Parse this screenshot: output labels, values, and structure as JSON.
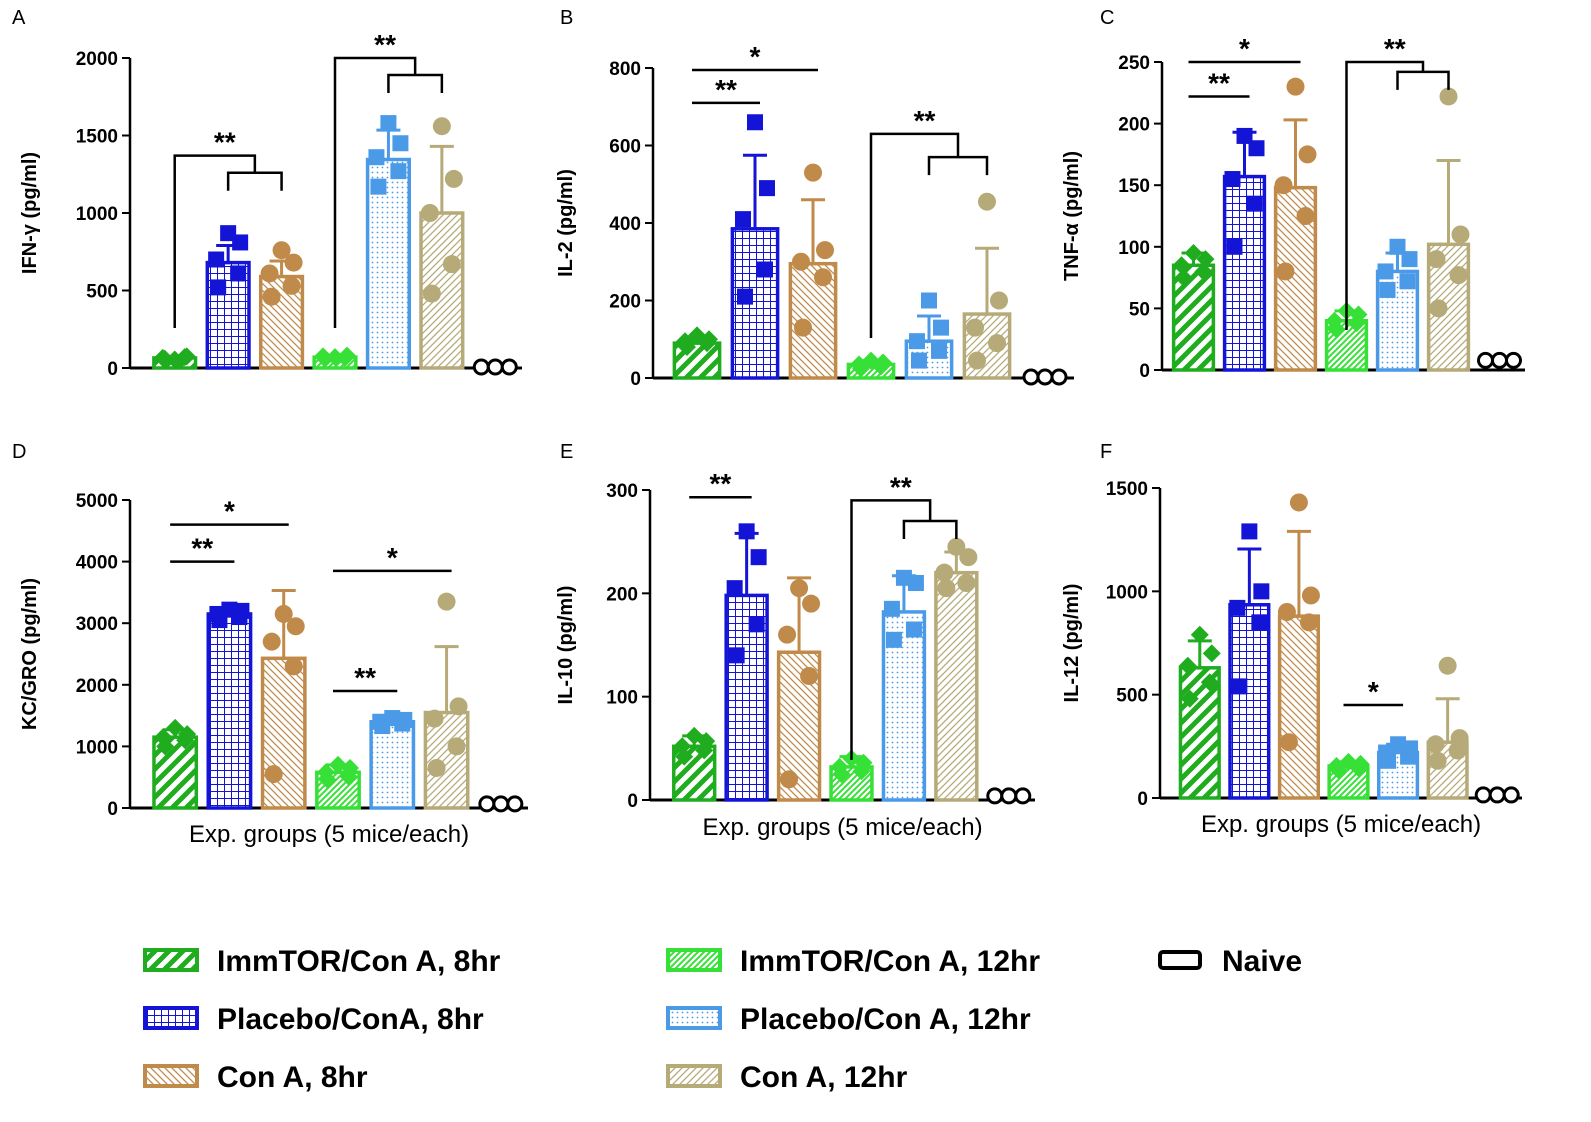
{
  "figure": {
    "legend": [
      {
        "label": "ImmTOR/Con A, 8hr",
        "series": 0
      },
      {
        "label": "Placebo/ConA, 8hr",
        "series": 1
      },
      {
        "label": "Con A, 8hr",
        "series": 2
      },
      {
        "label": "ImmTOR/Con A, 12hr",
        "series": 3
      },
      {
        "label": "Placebo/Con A, 12hr",
        "series": 4
      },
      {
        "label": "Con A, 12hr",
        "series": 5
      },
      {
        "label": "Naive",
        "series": 6
      }
    ],
    "series_styles": [
      {
        "name": "ImmTOR/Con A, 8hr",
        "color": "#1fad1f",
        "pattern": "diag-wide"
      },
      {
        "name": "Placebo/ConA, 8hr",
        "color": "#1414d6",
        "pattern": "grid"
      },
      {
        "name": "Con A, 8hr",
        "color": "#c08a4a",
        "pattern": "diag-back"
      },
      {
        "name": "ImmTOR/Con A, 12hr",
        "color": "#36e036",
        "pattern": "diag-fine"
      },
      {
        "name": "Placebo/Con A, 12hr",
        "color": "#4a9ae8",
        "pattern": "dots"
      },
      {
        "name": "Con A, 12hr",
        "color": "#b5aa78",
        "pattern": "diag-fwd"
      },
      {
        "name": "Naive",
        "color": "#000000",
        "pattern": "none"
      }
    ]
  },
  "chart_data": [
    {
      "panel": "A",
      "type": "bar",
      "ylabel": "IFN-γ (pg/ml)",
      "xlabel": "",
      "ylim": [
        0,
        2000
      ],
      "yticks": [
        "0",
        "500",
        "1000",
        "1500",
        "2000"
      ],
      "categories": [
        "ImmTOR/Con A, 8hr",
        "Placebo/ConA, 8hr",
        "Con A, 8hr",
        "ImmTOR/Con A, 12hr",
        "Placebo/Con A, 12hr",
        "Con A, 12hr",
        "Naive"
      ],
      "values": [
        65,
        680,
        590,
        70,
        1345,
        1000,
        0
      ],
      "errors": [
        10,
        110,
        100,
        10,
        190,
        430,
        0
      ],
      "points": [
        [
          60,
          70,
          65,
          75,
          55
        ],
        [
          520,
          610,
          700,
          810,
          870
        ],
        [
          460,
          530,
          610,
          680,
          760
        ],
        [
          60,
          65,
          75,
          80,
          70
        ],
        [
          1170,
          1270,
          1360,
          1450,
          1580
        ],
        [
          480,
          670,
          1000,
          1220,
          1560
        ],
        [
          0,
          0,
          0
        ]
      ],
      "significance": [
        {
          "label": "**",
          "type": "multi",
          "from": 0,
          "to": [
            1,
            2
          ],
          "y": 1370,
          "yb": 1260
        },
        {
          "label": "**",
          "type": "multi",
          "from": 3,
          "to": [
            4,
            5
          ],
          "y": 2000,
          "yb": 1890
        }
      ]
    },
    {
      "panel": "B",
      "type": "bar",
      "ylabel": "IL-2 (pg/ml)",
      "xlabel": "",
      "ylim": [
        0,
        800
      ],
      "yticks": [
        "0",
        "200",
        "400",
        "600",
        "800"
      ],
      "categories": [
        "ImmTOR/Con A, 8hr",
        "Placebo/ConA, 8hr",
        "Con A, 8hr",
        "ImmTOR/Con A, 12hr",
        "Placebo/Con A, 12hr",
        "Con A, 12hr",
        "Naive"
      ],
      "values": [
        90,
        385,
        295,
        35,
        95,
        165,
        0
      ],
      "errors": [
        10,
        190,
        165,
        10,
        65,
        170,
        0
      ],
      "points": [
        [
          80,
          90,
          95,
          100,
          110
        ],
        [
          210,
          280,
          410,
          490,
          660
        ],
        [
          130,
          260,
          300,
          330,
          530
        ],
        [
          25,
          30,
          35,
          40,
          45
        ],
        [
          45,
          70,
          95,
          130,
          200
        ],
        [
          45,
          90,
          130,
          200,
          455
        ],
        [
          0,
          0,
          0
        ]
      ],
      "significance": [
        {
          "label": "**",
          "type": "line",
          "from": 0,
          "to": [
            1
          ],
          "y": 710
        },
        {
          "label": "*",
          "type": "line",
          "from": 0,
          "to": [
            2
          ],
          "y": 795
        },
        {
          "label": "**",
          "type": "multi",
          "from": 3,
          "to": [
            4,
            5
          ],
          "y": 630,
          "yb": 570
        }
      ]
    },
    {
      "panel": "C",
      "type": "bar",
      "ylabel": "TNF-α (pg/ml)",
      "xlabel": "",
      "ylim": [
        0,
        250
      ],
      "yticks": [
        "0",
        "50",
        "100",
        "150",
        "200",
        "250"
      ],
      "categories": [
        "ImmTOR/Con A, 8hr",
        "Placebo/ConA, 8hr",
        "Con A, 8hr",
        "ImmTOR/Con A, 12hr",
        "Placebo/Con A, 12hr",
        "Con A, 12hr",
        "Naive"
      ],
      "values": [
        85,
        157,
        148,
        40,
        80,
        102,
        7
      ],
      "errors": [
        10,
        36,
        55,
        8,
        15,
        68,
        0
      ],
      "points": [
        [
          75,
          80,
          85,
          90,
          95
        ],
        [
          100,
          135,
          155,
          180,
          190
        ],
        [
          80,
          125,
          150,
          175,
          230
        ],
        [
          33,
          38,
          40,
          45,
          48
        ],
        [
          65,
          72,
          80,
          90,
          100
        ],
        [
          50,
          77,
          90,
          110,
          222
        ],
        [
          7,
          7,
          7
        ]
      ],
      "significance": [
        {
          "label": "**",
          "type": "line",
          "from": 0,
          "to": [
            1
          ],
          "y": 222
        },
        {
          "label": "*",
          "type": "line",
          "from": 0,
          "to": [
            2
          ],
          "y": 250
        },
        {
          "label": "**",
          "type": "multi",
          "from": 3,
          "to": [
            4,
            5
          ],
          "y": 250,
          "yb": 242
        }
      ]
    },
    {
      "panel": "D",
      "type": "bar",
      "ylabel": "KC/GRO (pg/ml)",
      "xlabel": "Exp. groups (5 mice/each)",
      "ylim": [
        0,
        5000
      ],
      "yticks": [
        "0",
        "1000",
        "2000",
        "3000",
        "4000",
        "5000"
      ],
      "categories": [
        "ImmTOR/Con A, 8hr",
        "Placebo/ConA, 8hr",
        "Con A, 8hr",
        "ImmTOR/Con A, 12hr",
        "Placebo/Con A, 12hr",
        "Con A, 12hr",
        "Naive"
      ],
      "values": [
        1150,
        3150,
        2430,
        580,
        1400,
        1550,
        50
      ],
      "errors": [
        120,
        70,
        1100,
        120,
        60,
        1070,
        0
      ],
      "points": [
        [
          1000,
          1100,
          1150,
          1200,
          1300
        ],
        [
          3050,
          3100,
          3150,
          3200,
          3220
        ],
        [
          550,
          2300,
          2700,
          2950,
          3150
        ],
        [
          450,
          520,
          580,
          650,
          700
        ],
        [
          1330,
          1370,
          1400,
          1430,
          1460
        ],
        [
          650,
          1000,
          1450,
          1650,
          3350
        ],
        [
          50,
          50,
          50
        ]
      ],
      "significance": [
        {
          "label": "**",
          "type": "line",
          "from": 0,
          "to": [
            1
          ],
          "y": 4000
        },
        {
          "label": "*",
          "type": "line",
          "from": 0,
          "to": [
            2
          ],
          "y": 4600
        },
        {
          "label": "**",
          "type": "line",
          "from": 3,
          "to": [
            4
          ],
          "y": 1900
        },
        {
          "label": "*",
          "type": "line",
          "from": 3,
          "to": [
            5
          ],
          "y": 3850
        }
      ]
    },
    {
      "panel": "E",
      "type": "bar",
      "ylabel": "IL-10 (pg/ml)",
      "xlabel": "Exp. groups (5 mice/each)",
      "ylim": [
        0,
        300
      ],
      "yticks": [
        "0",
        "100",
        "200",
        "300"
      ],
      "categories": [
        "ImmTOR/Con A, 8hr",
        "Placebo/ConA, 8hr",
        "Con A, 8hr",
        "ImmTOR/Con A, 12hr",
        "Placebo/Con A, 12hr",
        "Con A, 12hr",
        "Naive"
      ],
      "values": [
        52,
        198,
        143,
        32,
        182,
        220,
        3
      ],
      "errors": [
        10,
        60,
        72,
        10,
        35,
        20,
        0
      ],
      "points": [
        [
          42,
          48,
          52,
          57,
          62
        ],
        [
          140,
          170,
          205,
          235,
          260
        ],
        [
          20,
          120,
          160,
          190,
          205
        ],
        [
          25,
          28,
          32,
          36,
          40
        ],
        [
          155,
          165,
          185,
          210,
          215
        ],
        [
          205,
          210,
          220,
          235,
          245
        ],
        [
          3,
          3,
          3
        ]
      ],
      "significance": [
        {
          "label": "**",
          "type": "line",
          "from": 0,
          "to": [
            1
          ],
          "y": 293
        },
        {
          "label": "**",
          "type": "multi",
          "from": 3,
          "to": [
            4,
            5
          ],
          "y": 290,
          "yb": 270
        }
      ]
    },
    {
      "panel": "F",
      "type": "bar",
      "ylabel": "IL-12 (pg/ml)",
      "xlabel": "Exp. groups (5 mice/each)",
      "ylim": [
        0,
        1500
      ],
      "yticks": [
        "0",
        "500",
        "1000",
        "1500"
      ],
      "categories": [
        "ImmTOR/Con A, 8hr",
        "Placebo/ConA, 8hr",
        "Con A, 8hr",
        "ImmTOR/Con A, 12hr",
        "Placebo/Con A, 12hr",
        "Con A, 12hr",
        "Naive"
      ],
      "values": [
        630,
        935,
        880,
        155,
        220,
        270,
        10
      ],
      "errors": [
        130,
        270,
        410,
        20,
        40,
        210,
        0
      ],
      "points": [
        [
          480,
          560,
          640,
          700,
          790
        ],
        [
          540,
          850,
          920,
          1000,
          1290
        ],
        [
          270,
          850,
          900,
          980,
          1430
        ],
        [
          135,
          145,
          155,
          165,
          175
        ],
        [
          180,
          200,
          220,
          240,
          260
        ],
        [
          180,
          230,
          260,
          290,
          640
        ],
        [
          10,
          10,
          10
        ]
      ],
      "significance": [
        {
          "label": "*",
          "type": "line",
          "from": 3,
          "to": [
            4
          ],
          "y": 450
        }
      ]
    }
  ]
}
